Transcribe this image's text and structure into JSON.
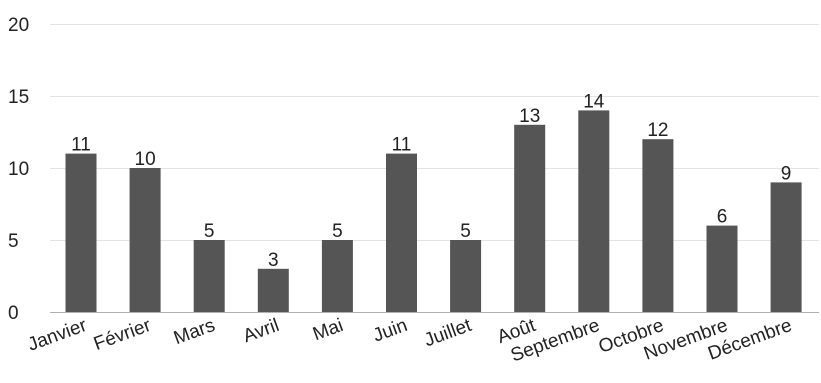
{
  "chart_data": {
    "type": "bar",
    "categories": [
      "Janvier",
      "Février",
      "Mars",
      "Avril",
      "Mai",
      "Juin",
      "Juillet",
      "Août",
      "Septembre",
      "Octobre",
      "Novembre",
      "Décembre"
    ],
    "values": [
      11,
      10,
      5,
      3,
      5,
      11,
      5,
      13,
      14,
      12,
      6,
      9
    ],
    "ylim": [
      0,
      20
    ],
    "yticks": [
      0,
      5,
      10,
      15,
      20
    ],
    "grid": true,
    "bar_color": "#555555"
  }
}
